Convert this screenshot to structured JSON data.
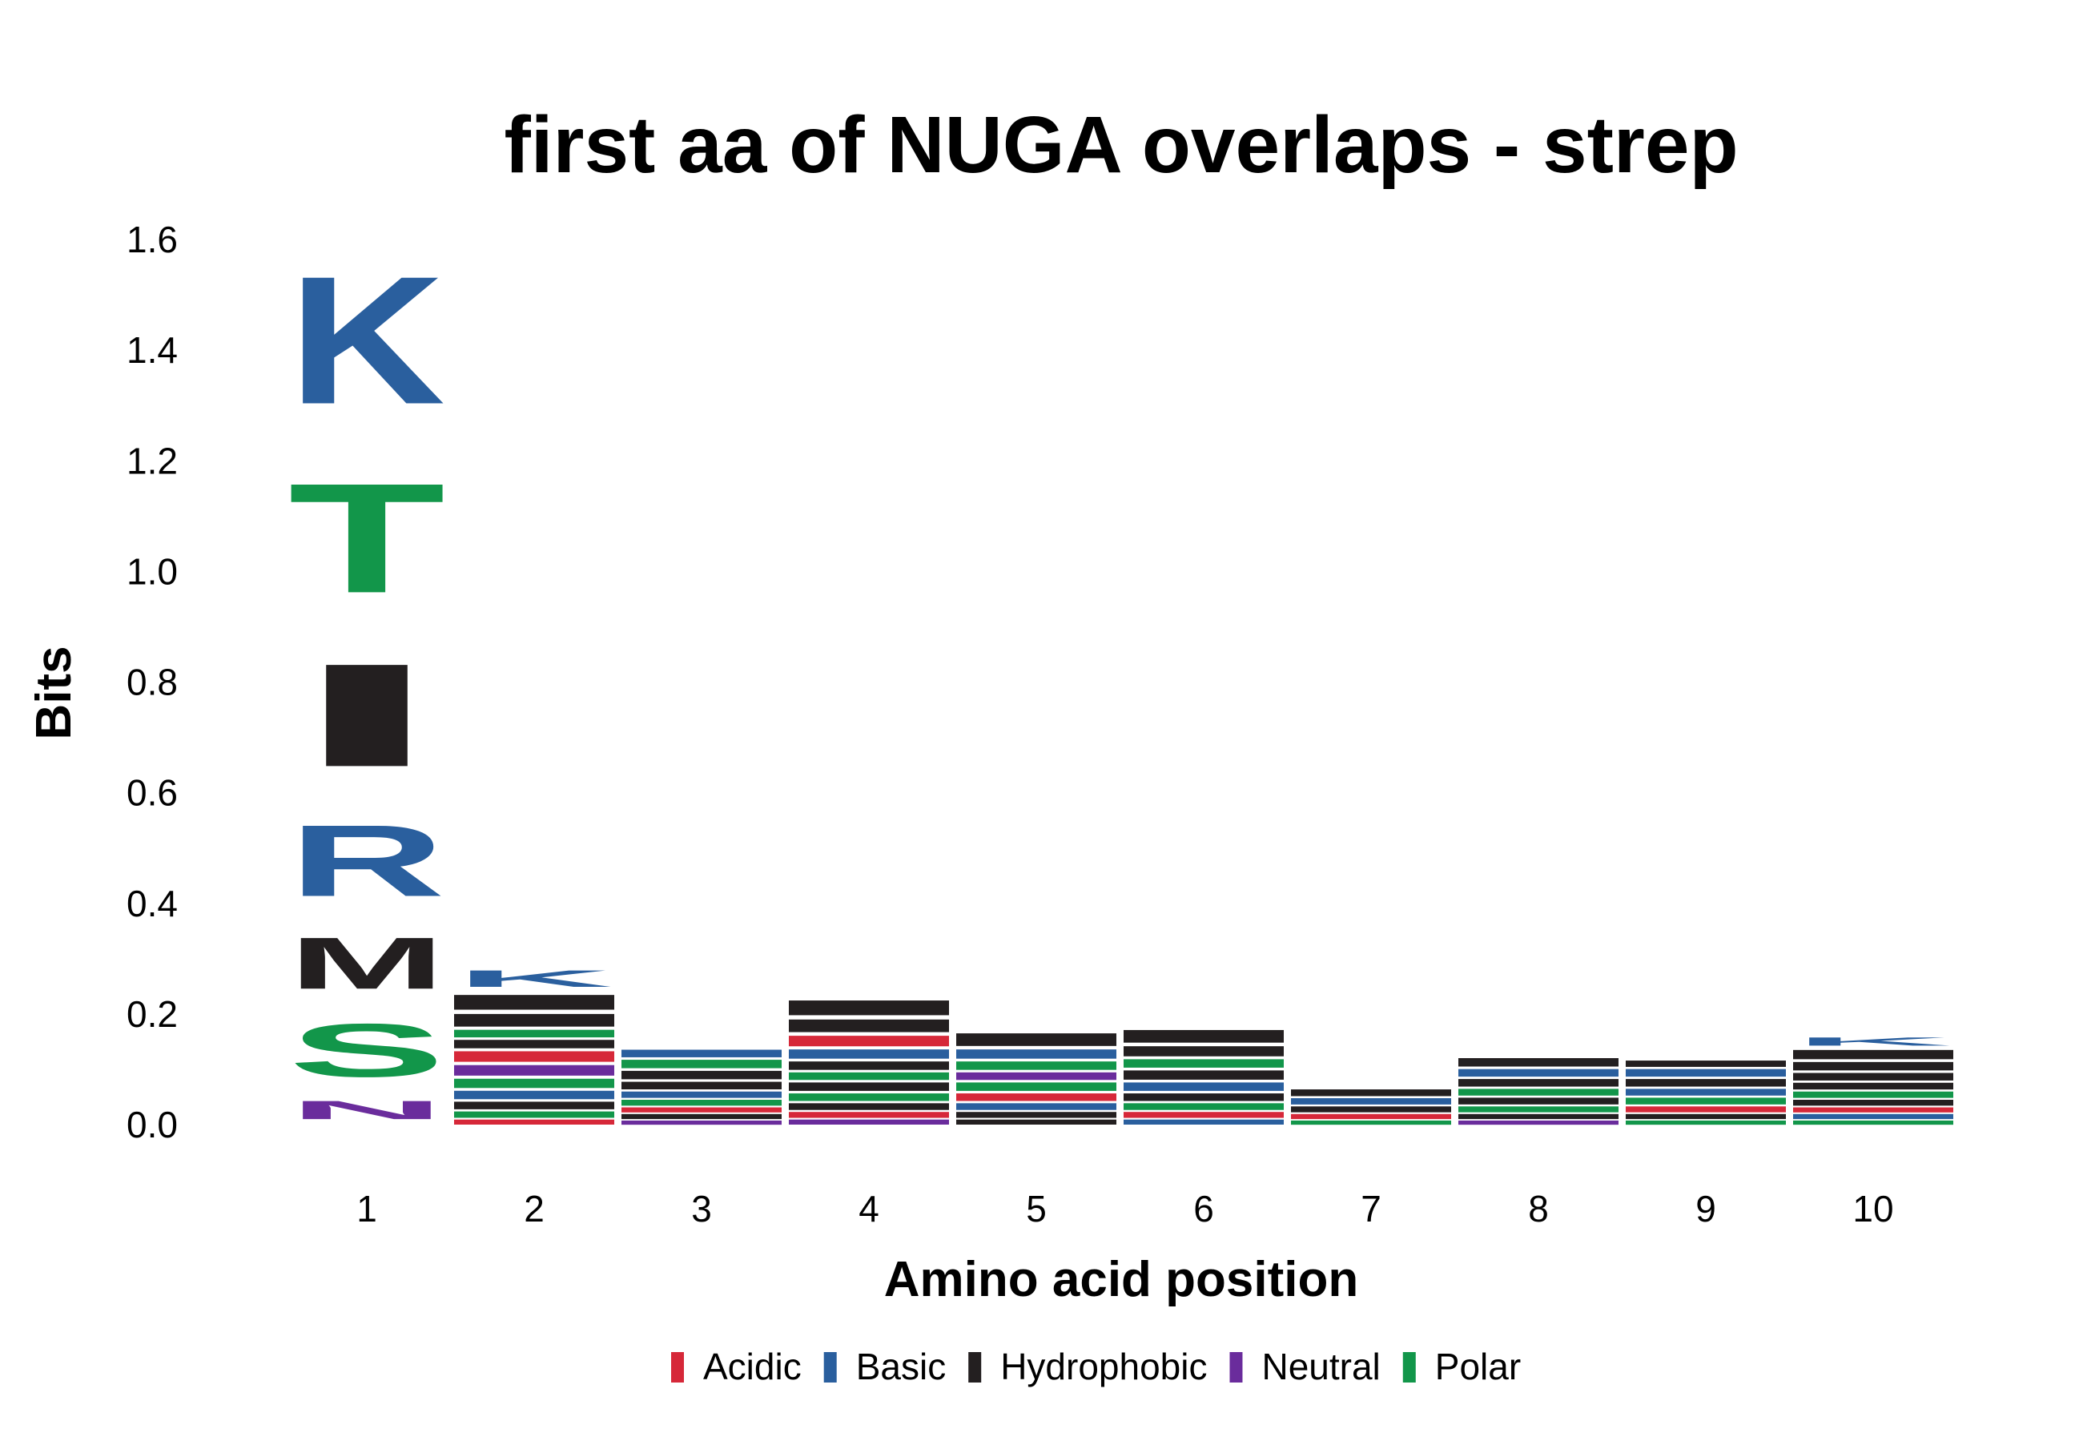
{
  "chart_data": {
    "type": "sequence-logo",
    "title": "first aa of NUGA overlaps - strep",
    "xlabel": "Amino acid position",
    "ylabel": "Bits",
    "ylim": [
      0,
      1.6
    ],
    "yticks": [
      "0.0",
      "0.2",
      "0.4",
      "0.6",
      "0.8",
      "1.0",
      "1.2",
      "1.4",
      "1.6"
    ],
    "categories": [
      "1",
      "2",
      "3",
      "4",
      "5",
      "6",
      "7",
      "8",
      "9",
      "10"
    ],
    "legend_position": "bottom",
    "legend": [
      {
        "name": "Acidic",
        "color": "#D62839"
      },
      {
        "name": "Basic",
        "color": "#2A5F9E"
      },
      {
        "name": "Hydrophobic",
        "color": "#231F20"
      },
      {
        "name": "Neutral",
        "color": "#6A2C9C"
      },
      {
        "name": "Polar",
        "color": "#12964A"
      }
    ],
    "positions": [
      {
        "position": "1",
        "stack": [
          {
            "aa": "N",
            "class": "Neutral",
            "bits": 0.055
          },
          {
            "aa": "S",
            "class": "Polar",
            "bits": 0.16
          },
          {
            "aa": "M",
            "class": "Hydrophobic",
            "bits": 0.155
          },
          {
            "aa": "R",
            "class": "Basic",
            "bits": 0.215
          },
          {
            "aa": "I",
            "class": "Hydrophobic",
            "bits": 0.31
          },
          {
            "aa": "T",
            "class": "Polar",
            "bits": 0.33
          },
          {
            "aa": "K",
            "class": "Basic",
            "bits": 0.385
          }
        ]
      },
      {
        "position": "2",
        "stack": [
          {
            "aa": "",
            "class": "Acidic",
            "bits": 0.012
          },
          {
            "aa": "",
            "class": "Polar",
            "bits": 0.015
          },
          {
            "aa": "",
            "class": "Hydrophobic",
            "bits": 0.018
          },
          {
            "aa": "",
            "class": "Basic",
            "bits": 0.02
          },
          {
            "aa": "",
            "class": "Polar",
            "bits": 0.022
          },
          {
            "aa": "",
            "class": "Neutral",
            "bits": 0.025
          },
          {
            "aa": "",
            "class": "Acidic",
            "bits": 0.025
          },
          {
            "aa": "",
            "class": "Hydrophobic",
            "bits": 0.02
          },
          {
            "aa": "",
            "class": "Polar",
            "bits": 0.018
          },
          {
            "aa": "",
            "class": "Hydrophobic",
            "bits": 0.03
          },
          {
            "aa": "",
            "class": "Hydrophobic",
            "bits": 0.035
          },
          {
            "aa": "K",
            "class": "Basic",
            "bits": 0.05
          }
        ]
      },
      {
        "position": "3",
        "stack": [
          {
            "aa": "",
            "class": "Neutral",
            "bits": 0.01
          },
          {
            "aa": "",
            "class": "Hydrophobic",
            "bits": 0.012
          },
          {
            "aa": "",
            "class": "Acidic",
            "bits": 0.012
          },
          {
            "aa": "",
            "class": "Polar",
            "bits": 0.014
          },
          {
            "aa": "",
            "class": "Basic",
            "bits": 0.015
          },
          {
            "aa": "",
            "class": "Hydrophobic",
            "bits": 0.018
          },
          {
            "aa": "",
            "class": "Hydrophobic",
            "bits": 0.02
          },
          {
            "aa": "",
            "class": "Polar",
            "bits": 0.02
          },
          {
            "aa": "",
            "class": "Basic",
            "bits": 0.018
          }
        ]
      },
      {
        "position": "4",
        "stack": [
          {
            "aa": "",
            "class": "Neutral",
            "bits": 0.012
          },
          {
            "aa": "",
            "class": "Acidic",
            "bits": 0.014
          },
          {
            "aa": "",
            "class": "Hydrophobic",
            "bits": 0.016
          },
          {
            "aa": "",
            "class": "Polar",
            "bits": 0.018
          },
          {
            "aa": "",
            "class": "Hydrophobic",
            "bits": 0.02
          },
          {
            "aa": "",
            "class": "Polar",
            "bits": 0.018
          },
          {
            "aa": "",
            "class": "Hydrophobic",
            "bits": 0.02
          },
          {
            "aa": "",
            "class": "Basic",
            "bits": 0.022
          },
          {
            "aa": "",
            "class": "Acidic",
            "bits": 0.025
          },
          {
            "aa": "",
            "class": "Hydrophobic",
            "bits": 0.03
          },
          {
            "aa": "",
            "class": "Hydrophobic",
            "bits": 0.035
          }
        ]
      },
      {
        "position": "5",
        "stack": [
          {
            "aa": "",
            "class": "Hydrophobic",
            "bits": 0.012
          },
          {
            "aa": "",
            "class": "Hydrophobic",
            "bits": 0.014
          },
          {
            "aa": "",
            "class": "Basic",
            "bits": 0.016
          },
          {
            "aa": "",
            "class": "Acidic",
            "bits": 0.018
          },
          {
            "aa": "",
            "class": "Polar",
            "bits": 0.02
          },
          {
            "aa": "",
            "class": "Neutral",
            "bits": 0.018
          },
          {
            "aa": "",
            "class": "Polar",
            "bits": 0.02
          },
          {
            "aa": "",
            "class": "Basic",
            "bits": 0.022
          },
          {
            "aa": "",
            "class": "Hydrophobic",
            "bits": 0.03
          }
        ]
      },
      {
        "position": "6",
        "stack": [
          {
            "aa": "",
            "class": "Basic",
            "bits": 0.012
          },
          {
            "aa": "",
            "class": "Acidic",
            "bits": 0.014
          },
          {
            "aa": "",
            "class": "Polar",
            "bits": 0.016
          },
          {
            "aa": "",
            "class": "Hydrophobic",
            "bits": 0.018
          },
          {
            "aa": "",
            "class": "Basic",
            "bits": 0.02
          },
          {
            "aa": "",
            "class": "Hydrophobic",
            "bits": 0.022
          },
          {
            "aa": "",
            "class": "Polar",
            "bits": 0.02
          },
          {
            "aa": "",
            "class": "Hydrophobic",
            "bits": 0.024
          },
          {
            "aa": "",
            "class": "Hydrophobic",
            "bits": 0.03
          }
        ]
      },
      {
        "position": "7",
        "stack": [
          {
            "aa": "",
            "class": "Polar",
            "bits": 0.01
          },
          {
            "aa": "",
            "class": "Acidic",
            "bits": 0.012
          },
          {
            "aa": "",
            "class": "Hydrophobic",
            "bits": 0.014
          },
          {
            "aa": "",
            "class": "Basic",
            "bits": 0.015
          },
          {
            "aa": "",
            "class": "Hydrophobic",
            "bits": 0.016
          }
        ]
      },
      {
        "position": "8",
        "stack": [
          {
            "aa": "",
            "class": "Neutral",
            "bits": 0.01
          },
          {
            "aa": "",
            "class": "Hydrophobic",
            "bits": 0.012
          },
          {
            "aa": "",
            "class": "Polar",
            "bits": 0.014
          },
          {
            "aa": "",
            "class": "Hydrophobic",
            "bits": 0.016
          },
          {
            "aa": "",
            "class": "Polar",
            "bits": 0.016
          },
          {
            "aa": "",
            "class": "Hydrophobic",
            "bits": 0.018
          },
          {
            "aa": "",
            "class": "Basic",
            "bits": 0.018
          },
          {
            "aa": "",
            "class": "Hydrophobic",
            "bits": 0.02
          }
        ]
      },
      {
        "position": "9",
        "stack": [
          {
            "aa": "",
            "class": "Polar",
            "bits": 0.01
          },
          {
            "aa": "",
            "class": "Hydrophobic",
            "bits": 0.012
          },
          {
            "aa": "",
            "class": "Acidic",
            "bits": 0.014
          },
          {
            "aa": "",
            "class": "Polar",
            "bits": 0.016
          },
          {
            "aa": "",
            "class": "Basic",
            "bits": 0.016
          },
          {
            "aa": "",
            "class": "Hydrophobic",
            "bits": 0.018
          },
          {
            "aa": "",
            "class": "Basic",
            "bits": 0.018
          },
          {
            "aa": "",
            "class": "Hydrophobic",
            "bits": 0.015
          }
        ]
      },
      {
        "position": "10",
        "stack": [
          {
            "aa": "",
            "class": "Polar",
            "bits": 0.01
          },
          {
            "aa": "",
            "class": "Basic",
            "bits": 0.012
          },
          {
            "aa": "",
            "class": "Acidic",
            "bits": 0.012
          },
          {
            "aa": "",
            "class": "Hydrophobic",
            "bits": 0.014
          },
          {
            "aa": "",
            "class": "Polar",
            "bits": 0.015
          },
          {
            "aa": "",
            "class": "Hydrophobic",
            "bits": 0.016
          },
          {
            "aa": "",
            "class": "Hydrophobic",
            "bits": 0.018
          },
          {
            "aa": "",
            "class": "Hydrophobic",
            "bits": 0.02
          },
          {
            "aa": "",
            "class": "Hydrophobic",
            "bits": 0.022
          },
          {
            "aa": "K",
            "class": "Basic",
            "bits": 0.025
          }
        ]
      }
    ]
  }
}
